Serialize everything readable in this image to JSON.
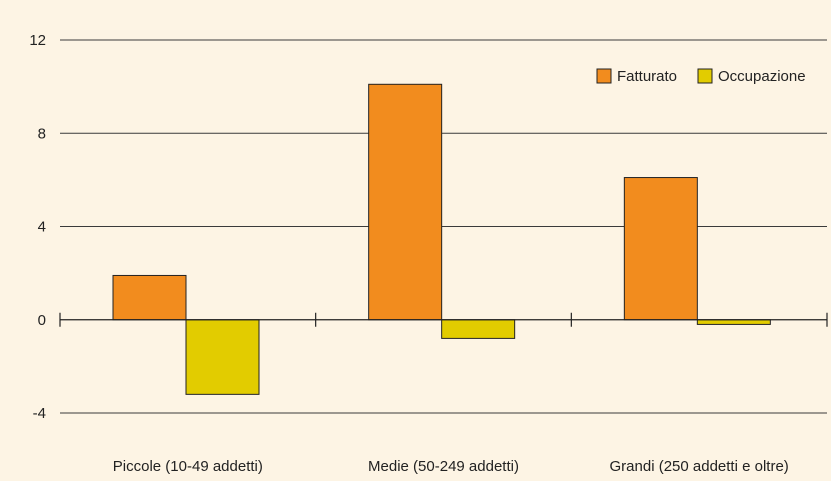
{
  "chart_data": {
    "type": "bar",
    "categories": [
      "Piccole (10-49 addetti)",
      "Medie (50-249 addetti)",
      "Grandi (250 addetti e oltre)"
    ],
    "series": [
      {
        "name": "Fatturato",
        "values": [
          1.9,
          10.1,
          6.1
        ],
        "color": "#F28C1E"
      },
      {
        "name": "Occupazione",
        "values": [
          -3.2,
          -0.8,
          -0.2
        ],
        "color": "#E2CC00"
      }
    ],
    "yticks": [
      12,
      8,
      4,
      0,
      -4
    ],
    "ylim": [
      -4,
      12
    ],
    "grid": true,
    "legend_position": "top-right",
    "background": "#FDF4E4",
    "grid_color": "#3A3A3A"
  }
}
